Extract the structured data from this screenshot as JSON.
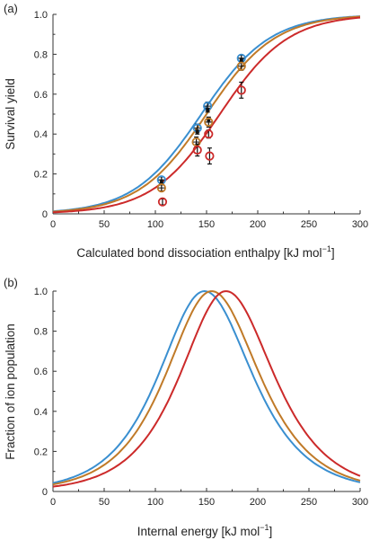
{
  "figure": {
    "panel_a_label": "(a)",
    "panel_b_label": "(b)"
  },
  "chart_data": [
    {
      "type": "line",
      "xlabel": "Calculated bond dissociation enthalpy [kJ mol⁻¹]",
      "xlabel_main": "Calculated bond dissociation enthalpy [kJ mol",
      "xlabel_sup": "−1",
      "xlabel_end": "]",
      "ylabel": "Survival yield",
      "xlim": [
        0,
        300
      ],
      "ylim": [
        0,
        1.0
      ],
      "xticks": [
        "0",
        "50",
        "100",
        "150",
        "200",
        "250",
        "300"
      ],
      "yticks": [
        "0",
        "0.2",
        "0.4",
        "0.6",
        "0.8",
        "1.0"
      ],
      "grid": false,
      "colors": {
        "blue": "#3a8fd0",
        "orange": "#c07a28",
        "red": "#cc2a2a",
        "black": "#111111"
      },
      "curves": [
        {
          "color": "blue",
          "midpoint": 145,
          "slope": 0.03
        },
        {
          "color": "orange",
          "midpoint": 150,
          "slope": 0.03
        },
        {
          "color": "red",
          "midpoint": 163,
          "slope": 0.03
        }
      ],
      "series": [
        {
          "marker": "circle-cross",
          "color": "blue",
          "points": [
            [
              106,
              0.17
            ],
            [
              141,
              0.43
            ],
            [
              151,
              0.54
            ],
            [
              184,
              0.78
            ]
          ],
          "err": [
            0.015,
            0.02,
            0.02,
            0.015
          ]
        },
        {
          "marker": "circle-dot",
          "color": "black",
          "points": [
            [
              106,
              0.16
            ],
            [
              141,
              0.41
            ],
            [
              151,
              0.52
            ],
            [
              152,
              0.47
            ],
            [
              184,
              0.77
            ]
          ],
          "err": [
            0.01,
            0.01,
            0.01,
            0.01,
            0.01
          ]
        },
        {
          "marker": "circle-cross",
          "color": "orange",
          "points": [
            [
              106,
              0.13
            ],
            [
              140,
              0.36
            ],
            [
              152,
              0.46
            ],
            [
              184,
              0.74
            ]
          ],
          "err": [
            0.015,
            0.025,
            0.025,
            0.02
          ]
        },
        {
          "marker": "circle",
          "color": "red",
          "points": [
            [
              107,
              0.06
            ],
            [
              141,
              0.32
            ],
            [
              152,
              0.4
            ],
            [
              153,
              0.29
            ],
            [
              184,
              0.62
            ]
          ],
          "err": [
            0.015,
            0.03,
            0.02,
            0.04,
            0.04
          ]
        }
      ]
    },
    {
      "type": "line",
      "xlabel": "Internal energy [kJ mol⁻¹]",
      "xlabel_main": "Internal energy [kJ mol",
      "xlabel_sup": "−1",
      "xlabel_end": "]",
      "ylabel": "Fraction of ion population",
      "xlim": [
        0,
        300
      ],
      "ylim": [
        0,
        1.0
      ],
      "xticks": [
        "0",
        "50",
        "100",
        "150",
        "200",
        "250",
        "300"
      ],
      "yticks": [
        "0",
        "0.2",
        "0.4",
        "0.6",
        "0.8",
        "1.0"
      ],
      "grid": false,
      "distributions": [
        {
          "color": "blue",
          "peak": 148,
          "peak_value": 1.0
        },
        {
          "color": "orange",
          "peak": 155,
          "peak_value": 1.0
        },
        {
          "color": "red",
          "peak": 169,
          "peak_value": 1.0
        }
      ]
    }
  ]
}
